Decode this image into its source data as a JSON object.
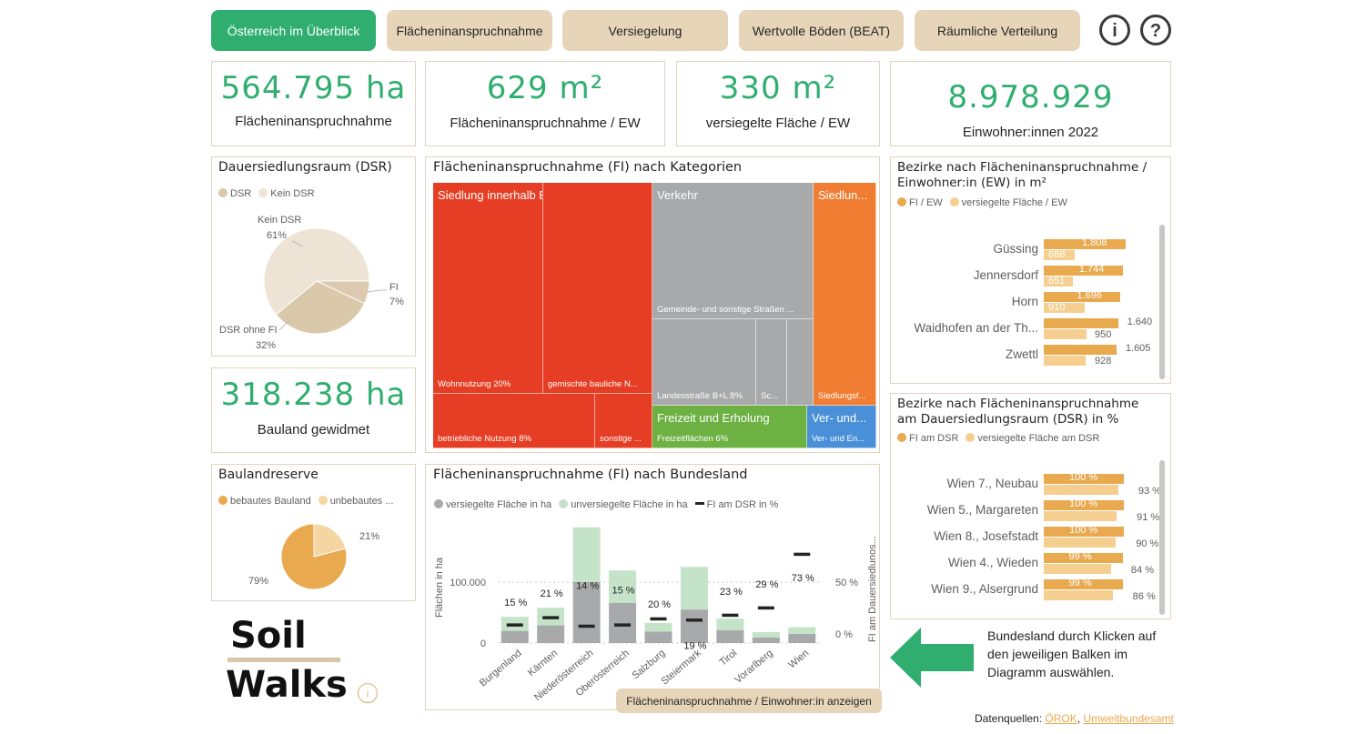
{
  "nav": {
    "tabs": [
      "Österreich im Überblick",
      "Flächeninanspruchnahme",
      "Versiegelung",
      "Wertvolle Böden (BEAT)",
      "Räumliche Verteilung"
    ],
    "active_index": 0,
    "info_label": "i",
    "help_label": "?"
  },
  "kpis": {
    "fi": {
      "value": "564.795 ha",
      "label": "Flächeninanspruchnahme"
    },
    "fi_ew": {
      "value": "629 m²",
      "label": "Flächeninanspruchnahme / EW"
    },
    "vers_ew": {
      "value": "330 m²",
      "label": "versiegelte Fläche / EW"
    },
    "ew": {
      "value": "8.978.929",
      "label": "Einwohner:innen 2022"
    },
    "bauland": {
      "value": "318.238 ha",
      "label": "Bauland gewidmet"
    }
  },
  "dsr": {
    "title": "Dauersiedlungsraum (DSR)",
    "legend": [
      "DSR",
      "Kein DSR"
    ],
    "slices": [
      {
        "name": "Kein DSR",
        "pct": "61%",
        "value": 61,
        "color": "#ede4d5"
      },
      {
        "name": "FI",
        "pct": "7%",
        "value": 7,
        "color": "#dccab0"
      },
      {
        "name": "DSR ohne FI",
        "pct": "32%",
        "value": 32,
        "color": "#d9c8aa"
      }
    ]
  },
  "bauland_reserve": {
    "title": "Baulandreserve",
    "legend": [
      "bebautes Bauland",
      "unbebautes ..."
    ],
    "slices": [
      {
        "pct": "79%",
        "value": 79,
        "color": "#e8a94f"
      },
      {
        "pct": "21%",
        "value": 21,
        "color": "#f3d6a2"
      }
    ]
  },
  "treemap": {
    "title": "Flächeninanspruchnahme (FI) nach Kategorien",
    "cells": {
      "siedlung": "Siedlung innerhalb Baulandwidmung",
      "wohn": "Wohnnutzung 20%",
      "gemischt": "gemischte bauliche N...",
      "betrieb": "betriebliche Nutzung 8%",
      "sonstige": "sonstige ...",
      "verkehr": "Verkehr",
      "gemeinde": "Gemeinde- und sonstige Straßen ...",
      "landes": "Landesstraße B+L 8%",
      "sc": "Sc...",
      "siedlun_o": "Siedlun...",
      "siedlungsf": "Siedlungsf...",
      "freizeit": "Freizeit und Erholung",
      "freizeitflaechen": "Freizeitflächen 6%",
      "ver_und": "Ver- und...",
      "ver_und_en": "Ver- und En..."
    }
  },
  "bundesland_chart": {
    "title": "Flächeninanspruchnahme (FI) nach Bundesland",
    "legend": [
      "versiegelte Fläche in ha",
      "unversiegelte Fläche in ha",
      "FI am DSR in %"
    ],
    "button_label": "Flächeninanspruchnahme / Einwohner:in anzeigen"
  },
  "chart_data": {
    "type": "bar",
    "title": "Flächeninanspruchnahme (FI) nach Bundesland",
    "categories": [
      "Burgenland",
      "Kärnten",
      "Niederösterreich",
      "Oberösterreich",
      "Salzburg",
      "Steiermark",
      "Tirol",
      "Vorarlberg",
      "Wien"
    ],
    "series": [
      {
        "name": "versiegelte Fläche in ha",
        "values": [
          20000,
          29000,
          100000,
          66000,
          19000,
          55000,
          21000,
          9000,
          15000
        ],
        "color": "#a8a9ab"
      },
      {
        "name": "unversiegelte Fläche in ha",
        "values": [
          23000,
          29000,
          90000,
          53000,
          14000,
          70000,
          19000,
          9000,
          11000
        ],
        "color": "#c5e3c9"
      },
      {
        "name": "FI am DSR in %",
        "values": [
          15,
          21,
          14,
          15,
          20,
          19,
          23,
          29,
          73
        ],
        "labels": [
          "15 %",
          "21 %",
          "14 %",
          "15 %",
          "20 %",
          "19 %",
          "23 %",
          "29 %",
          "73 %"
        ],
        "axis": "right"
      }
    ],
    "ylabel": "Flächen in ha",
    "y2label": "FI am Dauersiedlunos...",
    "yticks": [
      "0",
      "100.000"
    ],
    "y2ticks": [
      "0 %",
      "50 %"
    ],
    "ylim": [
      0,
      200000
    ],
    "y2lim": [
      0,
      100
    ]
  },
  "bezirke_ew": {
    "title": "Bezirke nach Flächeninanspruchnahme / Einwohner:in (EW) in m²",
    "legend": [
      "FI / EW",
      "versiegelte Fläche / EW"
    ],
    "rows": [
      {
        "name": "Güssing",
        "v1": 1808,
        "l1": "1.808",
        "v2": 688,
        "l2": "688"
      },
      {
        "name": "Jennersdorf",
        "v1": 1744,
        "l1": "1.744",
        "v2": 651,
        "l2": "651"
      },
      {
        "name": "Horn",
        "v1": 1696,
        "l1": "1.696",
        "v2": 910,
        "l2": "910"
      },
      {
        "name": "Waidhofen an der Th...",
        "v1": 1640,
        "l1": "1.640",
        "v2": 950,
        "l2": "950"
      },
      {
        "name": "Zwettl",
        "v1": 1605,
        "l1": "1.605",
        "v2": 928,
        "l2": "928"
      }
    ]
  },
  "bezirke_dsr": {
    "title": "Bezirke nach Flächeninanspruchnahme am Dauersiedlungsraum (DSR) in %",
    "legend": [
      "FI am DSR",
      "versiegelte Fläche am DSR"
    ],
    "rows": [
      {
        "name": "Wien  7., Neubau",
        "v1": 100,
        "l1": "100 %",
        "v2": 93,
        "l2": "93 %"
      },
      {
        "name": "Wien  5., Margareten",
        "v1": 100,
        "l1": "100 %",
        "v2": 91,
        "l2": "91 %"
      },
      {
        "name": "Wien  8., Josefstadt",
        "v1": 100,
        "l1": "100 %",
        "v2": 90,
        "l2": "90 %"
      },
      {
        "name": "Wien  4., Wieden",
        "v1": 99,
        "l1": "99 %",
        "v2": 84,
        "l2": "84 %"
      },
      {
        "name": "Wien  9., Alsergrund",
        "v1": 99,
        "l1": "99 %",
        "v2": 86,
        "l2": "86 %"
      }
    ]
  },
  "hint": {
    "text": "Bundesland durch Klicken auf den jeweiligen Balken im Diagramm auswählen."
  },
  "logo": {
    "line1": "Soil",
    "line2": "Walks"
  },
  "footer": {
    "prefix": "Datenquellen:",
    "link1": "ÖROK",
    "sep": ",",
    "link2": "Umweltbundesamt"
  },
  "colors": {
    "accent": "#2fae6f",
    "tab": "#e6d5b8",
    "red": "#e63e24",
    "grey": "#a8a9ab",
    "orange": "#f07d32",
    "green": "#6cb142",
    "blue": "#4a90d9"
  }
}
